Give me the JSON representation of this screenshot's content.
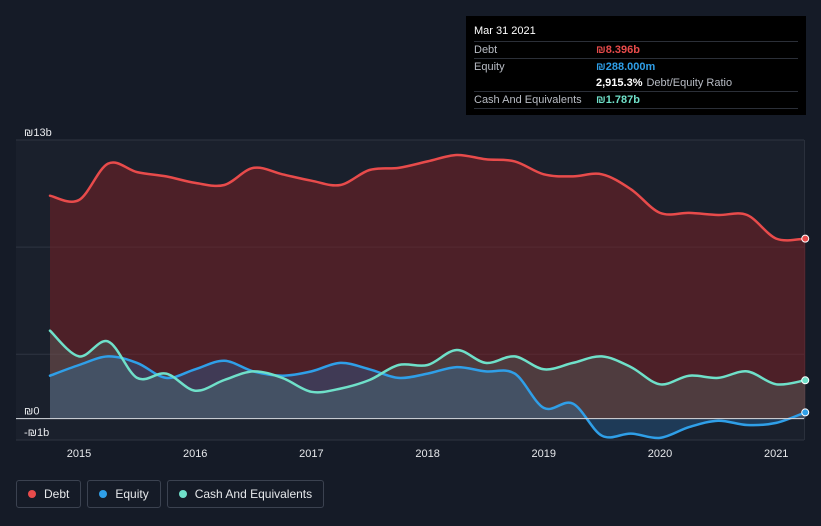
{
  "tooltip": {
    "date": "Mar 31 2021",
    "debt_label": "Debt",
    "debt_value": "₪8.396b",
    "equity_label": "Equity",
    "equity_value": "₪288.000m",
    "ratio_value": "2,915.3%",
    "ratio_label": "Debt/Equity Ratio",
    "cash_label": "Cash And Equivalents",
    "cash_value": "₪1.787b"
  },
  "legend": [
    {
      "label": "Debt",
      "color": "#e84b4b"
    },
    {
      "label": "Equity",
      "color": "#2f9fe8"
    },
    {
      "label": "Cash And Equivalents",
      "color": "#6fe0c9"
    }
  ],
  "chart_data": {
    "type": "area",
    "ylim": [
      -1,
      13
    ],
    "y_tick_labels": [
      "₪13b",
      "₪0",
      "-₪1b"
    ],
    "x_tick_labels": [
      "2015",
      "2016",
      "2017",
      "2018",
      "2019",
      "2020",
      "2021"
    ],
    "x_ticks": [
      2015,
      2016,
      2017,
      2018,
      2019,
      2020,
      2021
    ],
    "xlim": [
      2014.5,
      2021.25
    ],
    "grid": true,
    "series": [
      {
        "name": "Debt",
        "color": "#e84b4b",
        "points": [
          [
            2014.75,
            10.4
          ],
          [
            2015.0,
            10.2
          ],
          [
            2015.25,
            11.9
          ],
          [
            2015.5,
            11.5
          ],
          [
            2015.75,
            11.3
          ],
          [
            2016.0,
            11.0
          ],
          [
            2016.25,
            10.9
          ],
          [
            2016.5,
            11.7
          ],
          [
            2016.75,
            11.4
          ],
          [
            2017.0,
            11.1
          ],
          [
            2017.25,
            10.9
          ],
          [
            2017.5,
            11.6
          ],
          [
            2017.75,
            11.7
          ],
          [
            2018.0,
            12.0
          ],
          [
            2018.25,
            12.3
          ],
          [
            2018.5,
            12.1
          ],
          [
            2018.75,
            12.0
          ],
          [
            2019.0,
            11.4
          ],
          [
            2019.25,
            11.3
          ],
          [
            2019.5,
            11.4
          ],
          [
            2019.75,
            10.7
          ],
          [
            2020.0,
            9.6
          ],
          [
            2020.25,
            9.6
          ],
          [
            2020.5,
            9.5
          ],
          [
            2020.75,
            9.5
          ],
          [
            2021.0,
            8.4
          ],
          [
            2021.25,
            8.396
          ]
        ]
      },
      {
        "name": "Equity",
        "color": "#2f9fe8",
        "points": [
          [
            2014.75,
            2.0
          ],
          [
            2015.0,
            2.5
          ],
          [
            2015.25,
            2.9
          ],
          [
            2015.5,
            2.6
          ],
          [
            2015.75,
            1.9
          ],
          [
            2016.0,
            2.3
          ],
          [
            2016.25,
            2.7
          ],
          [
            2016.5,
            2.2
          ],
          [
            2016.75,
            2.0
          ],
          [
            2017.0,
            2.2
          ],
          [
            2017.25,
            2.6
          ],
          [
            2017.5,
            2.3
          ],
          [
            2017.75,
            1.9
          ],
          [
            2018.0,
            2.1
          ],
          [
            2018.25,
            2.4
          ],
          [
            2018.5,
            2.2
          ],
          [
            2018.75,
            2.1
          ],
          [
            2019.0,
            0.5
          ],
          [
            2019.25,
            0.7
          ],
          [
            2019.5,
            -0.8
          ],
          [
            2019.75,
            -0.7
          ],
          [
            2020.0,
            -0.9
          ],
          [
            2020.25,
            -0.4
          ],
          [
            2020.5,
            -0.1
          ],
          [
            2020.75,
            -0.3
          ],
          [
            2021.0,
            -0.2
          ],
          [
            2021.25,
            0.288
          ]
        ]
      },
      {
        "name": "Cash And Equivalents",
        "color": "#6fe0c9",
        "points": [
          [
            2014.75,
            4.1
          ],
          [
            2015.0,
            2.9
          ],
          [
            2015.25,
            3.6
          ],
          [
            2015.5,
            1.9
          ],
          [
            2015.75,
            2.1
          ],
          [
            2016.0,
            1.3
          ],
          [
            2016.25,
            1.8
          ],
          [
            2016.5,
            2.2
          ],
          [
            2016.75,
            1.9
          ],
          [
            2017.0,
            1.25
          ],
          [
            2017.25,
            1.4
          ],
          [
            2017.5,
            1.8
          ],
          [
            2017.75,
            2.5
          ],
          [
            2018.0,
            2.5
          ],
          [
            2018.25,
            3.2
          ],
          [
            2018.5,
            2.6
          ],
          [
            2018.75,
            2.9
          ],
          [
            2019.0,
            2.3
          ],
          [
            2019.25,
            2.6
          ],
          [
            2019.5,
            2.9
          ],
          [
            2019.75,
            2.4
          ],
          [
            2020.0,
            1.6
          ],
          [
            2020.25,
            2.0
          ],
          [
            2020.5,
            1.9
          ],
          [
            2020.75,
            2.2
          ],
          [
            2021.0,
            1.6
          ],
          [
            2021.25,
            1.787
          ]
        ]
      }
    ]
  }
}
